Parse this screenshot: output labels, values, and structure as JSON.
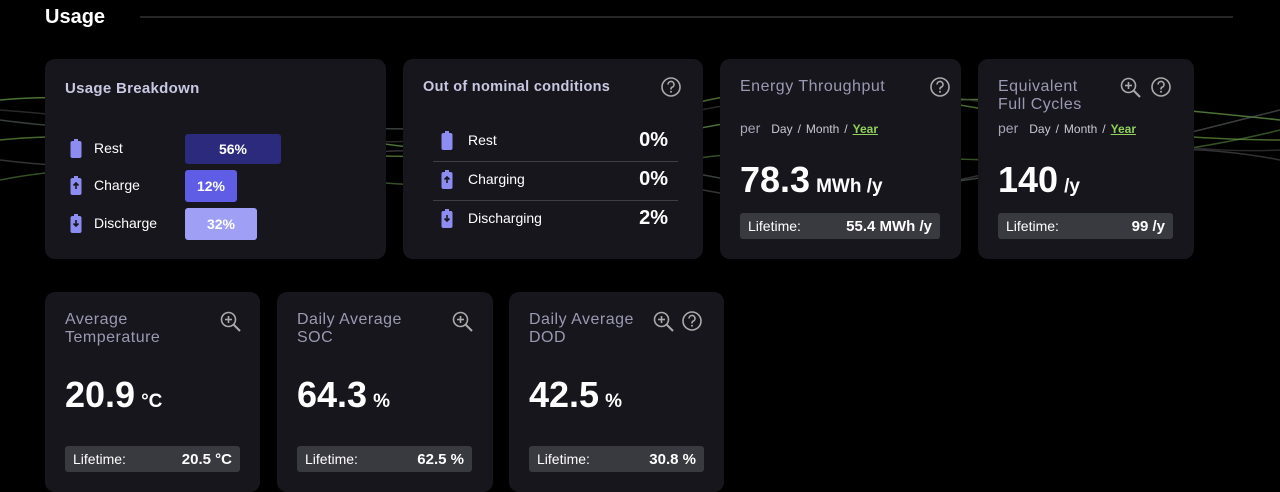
{
  "header": {
    "title": "Usage"
  },
  "usage_breakdown": {
    "title": "Usage Breakdown",
    "rows": [
      {
        "label": "Rest",
        "value": "56%"
      },
      {
        "label": "Charge",
        "value": "12%"
      },
      {
        "label": "Discharge",
        "value": "32%"
      }
    ]
  },
  "out_of_nominal": {
    "title": "Out of nominal conditions",
    "rows": [
      {
        "label": "Rest",
        "value": "0%"
      },
      {
        "label": "Charging",
        "value": "0%"
      },
      {
        "label": "Discharging",
        "value": "2%"
      }
    ]
  },
  "metrics": [
    {
      "title": "Energy Throughput",
      "per": "per",
      "periods": [
        "Day",
        "Month",
        "Year"
      ],
      "separator": "/",
      "value": "78.3",
      "unit": "MWh /y",
      "lifetime_label": "Lifetime:",
      "lifetime_value": "55.4 MWh /y"
    },
    {
      "title": "Equivalent Full Cycles",
      "per": "per",
      "periods": [
        "Day",
        "Month",
        "Year"
      ],
      "separator": "/",
      "value": "140",
      "unit": "/y",
      "lifetime_label": "Lifetime:",
      "lifetime_value": "99 /y"
    },
    {
      "title": "Average Temperature",
      "value": "20.9",
      "unit": "°C",
      "lifetime_label": "Lifetime:",
      "lifetime_value": "20.5 °C"
    },
    {
      "title": "Daily Average SOC",
      "value": "64.3",
      "unit": "%",
      "lifetime_label": "Lifetime:",
      "lifetime_value": "62.5 %"
    },
    {
      "title": "Daily Average DOD",
      "value": "42.5",
      "unit": "%",
      "lifetime_label": "Lifetime:",
      "lifetime_value": "30.8 %"
    }
  ]
}
